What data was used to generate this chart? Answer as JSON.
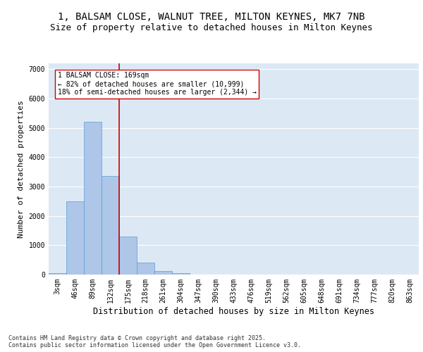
{
  "title_line1": "1, BALSAM CLOSE, WALNUT TREE, MILTON KEYNES, MK7 7NB",
  "title_line2": "Size of property relative to detached houses in Milton Keynes",
  "xlabel": "Distribution of detached houses by size in Milton Keynes",
  "ylabel": "Number of detached properties",
  "categories": [
    "3sqm",
    "46sqm",
    "89sqm",
    "132sqm",
    "175sqm",
    "218sqm",
    "261sqm",
    "304sqm",
    "347sqm",
    "390sqm",
    "433sqm",
    "476sqm",
    "519sqm",
    "562sqm",
    "605sqm",
    "648sqm",
    "691sqm",
    "734sqm",
    "777sqm",
    "820sqm",
    "863sqm"
  ],
  "values": [
    50,
    2500,
    5200,
    3350,
    1300,
    400,
    120,
    50,
    10,
    0,
    0,
    0,
    0,
    0,
    0,
    0,
    0,
    0,
    0,
    0,
    0
  ],
  "bar_color": "#aec6e8",
  "bar_edge_color": "#5b9bd5",
  "vline_x_idx": 4,
  "vline_color": "#cc0000",
  "annotation_text": "1 BALSAM CLOSE: 169sqm\n← 82% of detached houses are smaller (10,999)\n18% of semi-detached houses are larger (2,344) →",
  "ylim": [
    0,
    7200
  ],
  "yticks": [
    0,
    1000,
    2000,
    3000,
    4000,
    5000,
    6000,
    7000
  ],
  "plot_bg_color": "#dce9f5",
  "grid_color": "#ffffff",
  "footer_text": "Contains HM Land Registry data © Crown copyright and database right 2025.\nContains public sector information licensed under the Open Government Licence v3.0.",
  "title_fontsize": 10,
  "subtitle_fontsize": 9,
  "ylabel_fontsize": 8,
  "xlabel_fontsize": 8.5,
  "tick_fontsize": 7,
  "annot_fontsize": 7,
  "footer_fontsize": 6
}
